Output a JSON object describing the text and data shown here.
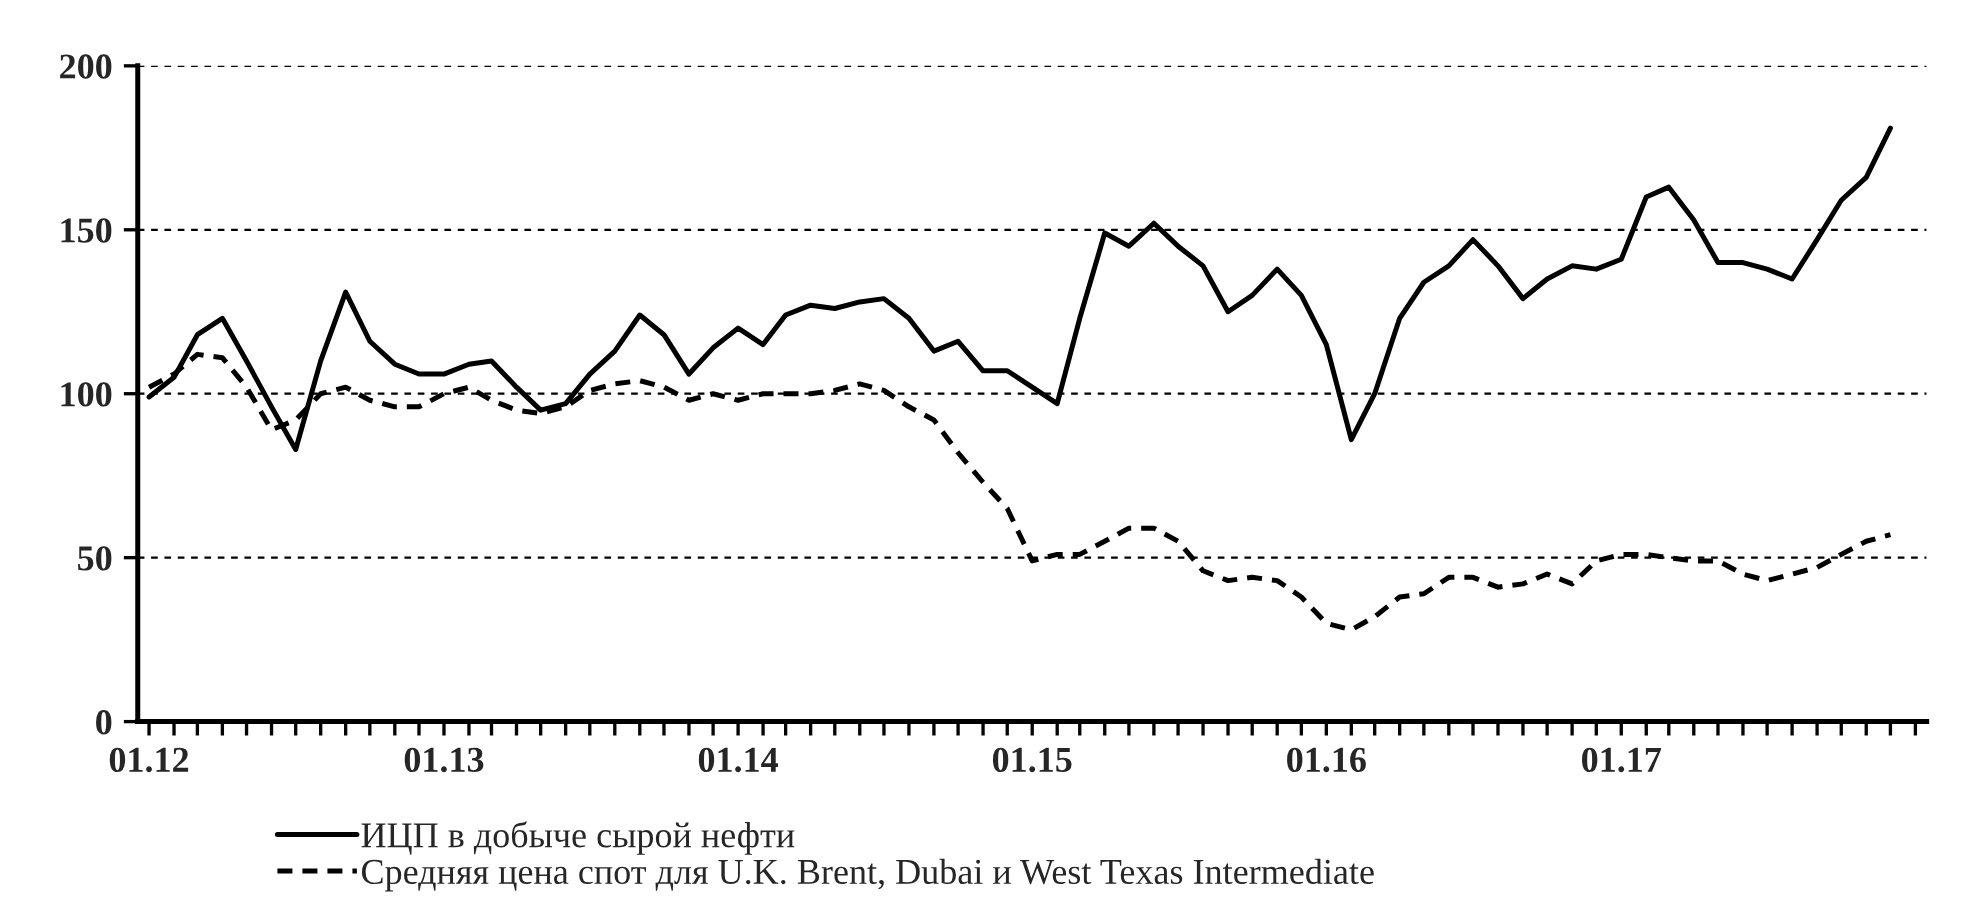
{
  "chart_data": {
    "type": "line",
    "x": [
      "2012-01",
      "2012-02",
      "2012-03",
      "2012-04",
      "2012-05",
      "2012-06",
      "2012-07",
      "2012-08",
      "2012-09",
      "2012-10",
      "2012-11",
      "2012-12",
      "2013-01",
      "2013-02",
      "2013-03",
      "2013-04",
      "2013-05",
      "2013-06",
      "2013-07",
      "2013-08",
      "2013-09",
      "2013-10",
      "2013-11",
      "2013-12",
      "2014-01",
      "2014-02",
      "2014-03",
      "2014-04",
      "2014-05",
      "2014-06",
      "2014-07",
      "2014-08",
      "2014-09",
      "2014-10",
      "2014-11",
      "2014-12",
      "2015-01",
      "2015-02",
      "2015-03",
      "2015-04",
      "2015-05",
      "2015-06",
      "2015-07",
      "2015-08",
      "2015-09",
      "2015-10",
      "2015-11",
      "2015-12",
      "2016-01",
      "2016-02",
      "2016-03",
      "2016-04",
      "2016-05",
      "2016-06",
      "2016-07",
      "2016-08",
      "2016-09",
      "2016-10",
      "2016-11",
      "2016-12",
      "2017-01",
      "2017-02",
      "2017-03",
      "2017-04",
      "2017-05",
      "2017-06",
      "2017-07",
      "2017-08",
      "2017-09",
      "2017-10",
      "2017-11",
      "2017-12"
    ],
    "series": [
      {
        "name": "ИЦП в добыче сырой нефти",
        "color": "#000000",
        "line_style": "solid",
        "values": [
          99,
          105,
          118,
          123,
          110,
          96,
          83,
          110,
          131,
          116,
          109,
          106,
          106,
          109,
          110,
          102,
          95,
          97,
          106,
          113,
          124,
          118,
          106,
          114,
          120,
          115,
          124,
          127,
          126,
          128,
          129,
          123,
          113,
          116,
          107,
          107,
          102,
          97,
          123,
          149,
          145,
          152,
          145,
          139,
          125,
          130,
          138,
          130,
          115,
          86,
          100,
          123,
          134,
          139,
          147,
          139,
          129,
          135,
          139,
          138,
          141,
          160,
          163,
          153,
          140,
          140,
          138,
          135,
          147,
          159,
          166,
          181
        ]
      },
      {
        "name": "Средняя цена спот для U.K. Brent, Dubai и West Texas Intermediate",
        "color": "#000000",
        "line_style": "dashed",
        "values": [
          102,
          106,
          112,
          111,
          102,
          89,
          92,
          100,
          102,
          98,
          96,
          96,
          100,
          102,
          98,
          95,
          94,
          96,
          101,
          103,
          104,
          102,
          98,
          100,
          98,
          100,
          100,
          100,
          101,
          103,
          101,
          96,
          92,
          82,
          73,
          65,
          49,
          51,
          51,
          55,
          59,
          59,
          55,
          46,
          43,
          44,
          43,
          38,
          30,
          28,
          32,
          38,
          39,
          44,
          44,
          41,
          42,
          45,
          42,
          49,
          51,
          51,
          50,
          49,
          49,
          45,
          43,
          45,
          47,
          51,
          55,
          57
        ]
      }
    ],
    "xlim": [
      "2011-12-18",
      "2018-01-15"
    ],
    "xticks": [
      {
        "value": "2012-01",
        "label": "01.12"
      },
      {
        "value": "2012-02",
        "label": null
      },
      {
        "value": "2012-03",
        "label": null
      },
      {
        "value": "2012-04",
        "label": null
      },
      {
        "value": "2012-05",
        "label": null
      },
      {
        "value": "2012-06",
        "label": null
      },
      {
        "value": "2012-07",
        "label": null
      },
      {
        "value": "2012-08",
        "label": null
      },
      {
        "value": "2012-09",
        "label": null
      },
      {
        "value": "2012-10",
        "label": null
      },
      {
        "value": "2012-11",
        "label": null
      },
      {
        "value": "2012-12",
        "label": null
      },
      {
        "value": "2013-01",
        "label": "01.13"
      },
      {
        "value": "2013-02",
        "label": null
      },
      {
        "value": "2013-03",
        "label": null
      },
      {
        "value": "2013-04",
        "label": null
      },
      {
        "value": "2013-05",
        "label": null
      },
      {
        "value": "2013-06",
        "label": null
      },
      {
        "value": "2013-07",
        "label": null
      },
      {
        "value": "2013-08",
        "label": null
      },
      {
        "value": "2013-09",
        "label": null
      },
      {
        "value": "2013-10",
        "label": null
      },
      {
        "value": "2013-11",
        "label": null
      },
      {
        "value": "2013-12",
        "label": null
      },
      {
        "value": "2014-01",
        "label": "01.14"
      },
      {
        "value": "2014-02",
        "label": null
      },
      {
        "value": "2014-03",
        "label": null
      },
      {
        "value": "2014-04",
        "label": null
      },
      {
        "value": "2014-05",
        "label": null
      },
      {
        "value": "2014-06",
        "label": null
      },
      {
        "value": "2014-07",
        "label": null
      },
      {
        "value": "2014-08",
        "label": null
      },
      {
        "value": "2014-09",
        "label": null
      },
      {
        "value": "2014-10",
        "label": null
      },
      {
        "value": "2014-11",
        "label": null
      },
      {
        "value": "2014-12",
        "label": null
      },
      {
        "value": "2015-01",
        "label": "01.15"
      },
      {
        "value": "2015-02",
        "label": null
      },
      {
        "value": "2015-03",
        "label": null
      },
      {
        "value": "2015-04",
        "label": null
      },
      {
        "value": "2015-05",
        "label": null
      },
      {
        "value": "2015-06",
        "label": null
      },
      {
        "value": "2015-07",
        "label": null
      },
      {
        "value": "2015-08",
        "label": null
      },
      {
        "value": "2015-09",
        "label": null
      },
      {
        "value": "2015-10",
        "label": null
      },
      {
        "value": "2015-11",
        "label": null
      },
      {
        "value": "2015-12",
        "label": null
      },
      {
        "value": "2016-01",
        "label": "01.16"
      },
      {
        "value": "2016-02",
        "label": null
      },
      {
        "value": "2016-03",
        "label": null
      },
      {
        "value": "2016-04",
        "label": null
      },
      {
        "value": "2016-05",
        "label": null
      },
      {
        "value": "2016-06",
        "label": null
      },
      {
        "value": "2016-07",
        "label": null
      },
      {
        "value": "2016-08",
        "label": null
      },
      {
        "value": "2016-09",
        "label": null
      },
      {
        "value": "2016-10",
        "label": null
      },
      {
        "value": "2016-11",
        "label": null
      },
      {
        "value": "2016-12",
        "label": null
      },
      {
        "value": "2017-01",
        "label": "01.17"
      },
      {
        "value": "2017-02",
        "label": null
      },
      {
        "value": "2017-03",
        "label": null
      },
      {
        "value": "2017-04",
        "label": null
      },
      {
        "value": "2017-05",
        "label": null
      },
      {
        "value": "2017-06",
        "label": null
      },
      {
        "value": "2017-07",
        "label": null
      },
      {
        "value": "2017-08",
        "label": null
      },
      {
        "value": "2017-09",
        "label": null
      },
      {
        "value": "2017-10",
        "label": null
      },
      {
        "value": "2017-11",
        "label": null
      },
      {
        "value": "2017-12",
        "label": null
      },
      {
        "value": "2018-01",
        "label": null
      }
    ],
    "ylim": [
      0,
      200
    ],
    "yticks": [
      0,
      50,
      100,
      150,
      200
    ],
    "grid": "y",
    "legend": "bottom"
  }
}
